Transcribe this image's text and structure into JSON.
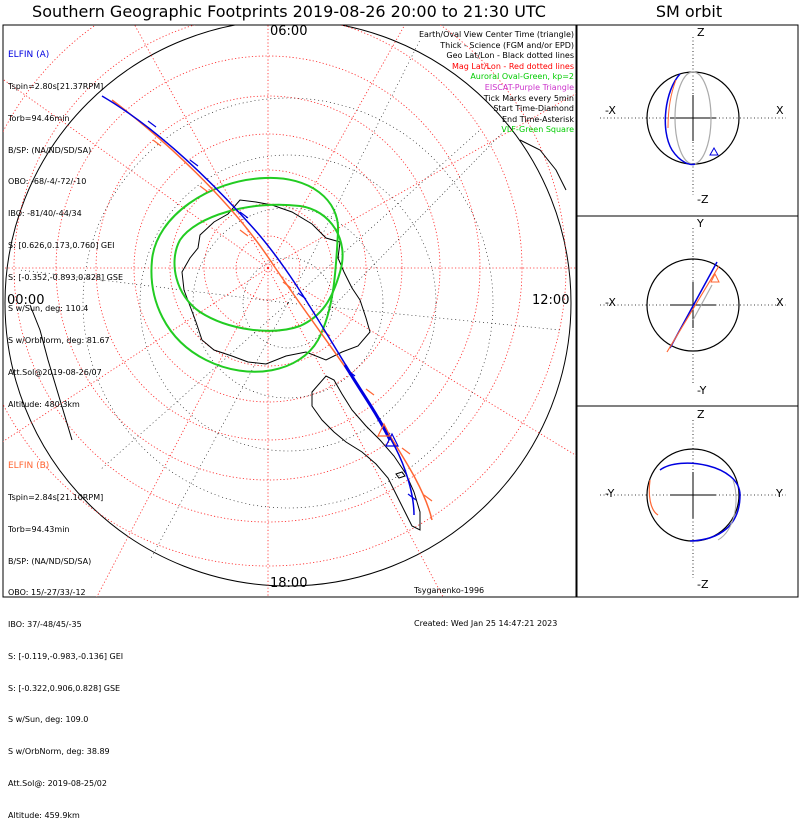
{
  "title": "Southern Geographic Footprints 2019-08-26 20:00 to 21:30 UTC",
  "sm_title": "SM orbit",
  "mlt_labels": {
    "top": "06:00",
    "left": "00:00",
    "right": "12:00",
    "bottom": "18:00"
  },
  "elfin_a": {
    "name": "ELFIN (A)",
    "color": "#0000e0",
    "lines": [
      "Tspin=2.80s[21.37RPM]",
      "Torb=94.46min",
      "B/SP: (NA/ND/SD/SA)",
      "OBO: -68/-4/-72/-10",
      "IBO: -81/40/-44/34",
      "S: [0.626,0.173,0.760] GEI",
      "S: [-0.352,-0.893,0.828] GSE",
      "S w/Sun, deg: 110.4",
      "S w/OrbNorm, deg: 81.67",
      "Att.Sol@2019-08-26/07",
      "Altitude: 480.3km"
    ]
  },
  "elfin_b": {
    "name": "ELFIN (B)",
    "color": "#ff6633",
    "lines": [
      "Tspin=2.84s[21.10RPM]",
      "Torb=94.43min",
      "B/SP: (NA/ND/SD/SA)",
      "OBO: 15/-27/33/-12",
      "IBO: 37/-48/45/-35",
      "S: [-0.119,-0.983,-0.136] GEI",
      "S: [-0.322,0.906,0.828] GSE",
      "S w/Sun, deg: 109.0",
      "S w/OrbNorm, deg: 38.89",
      "Att.Sol@: 2019-08-25/02",
      "Altitude: 459.9km"
    ]
  },
  "legend": [
    {
      "text": "Earth/Oval View Center Time (triangle)",
      "color": "#000000"
    },
    {
      "text": "Thick - Science (FGM and/or EPD)",
      "color": "#000000"
    },
    {
      "text": "Geo Lat/Lon - Black dotted lines",
      "color": "#000000"
    },
    {
      "text": "Mag Lat/Lon - Red dotted lines",
      "color": "#ff0000"
    },
    {
      "text": "Auroral Oval-Green, kp=2",
      "color": "#00cc00"
    },
    {
      "text": "EISCAT-Purple Triangle",
      "color": "#cc33cc"
    },
    {
      "text": "Tick Marks every 5min",
      "color": "#000000"
    },
    {
      "text": "Start Time-Diamond",
      "color": "#000000"
    },
    {
      "text": "End Time-Asterisk",
      "color": "#000000"
    },
    {
      "text": "VLF-Green Square",
      "color": "#00cc00"
    }
  ],
  "credits": {
    "author": "Tsyganenko-1996",
    "created": "Created: Wed Jan 25 14:47:21 2023"
  },
  "sm_panels": [
    {
      "name": "xz",
      "top": "Z",
      "bottom": "-Z",
      "left": "-X",
      "right": "X"
    },
    {
      "name": "xy",
      "top": "Y",
      "bottom": "-Y",
      "left": "-X",
      "right": "X"
    },
    {
      "name": "yz",
      "top": "Z",
      "bottom": "-Z",
      "left": "-Y",
      "right": "Y"
    }
  ],
  "colors": {
    "elfin_a": "#0000e0",
    "elfin_b": "#ff6633",
    "oval": "#22cc22",
    "mag_grid": "#ff0000",
    "geo_grid": "#000000"
  }
}
